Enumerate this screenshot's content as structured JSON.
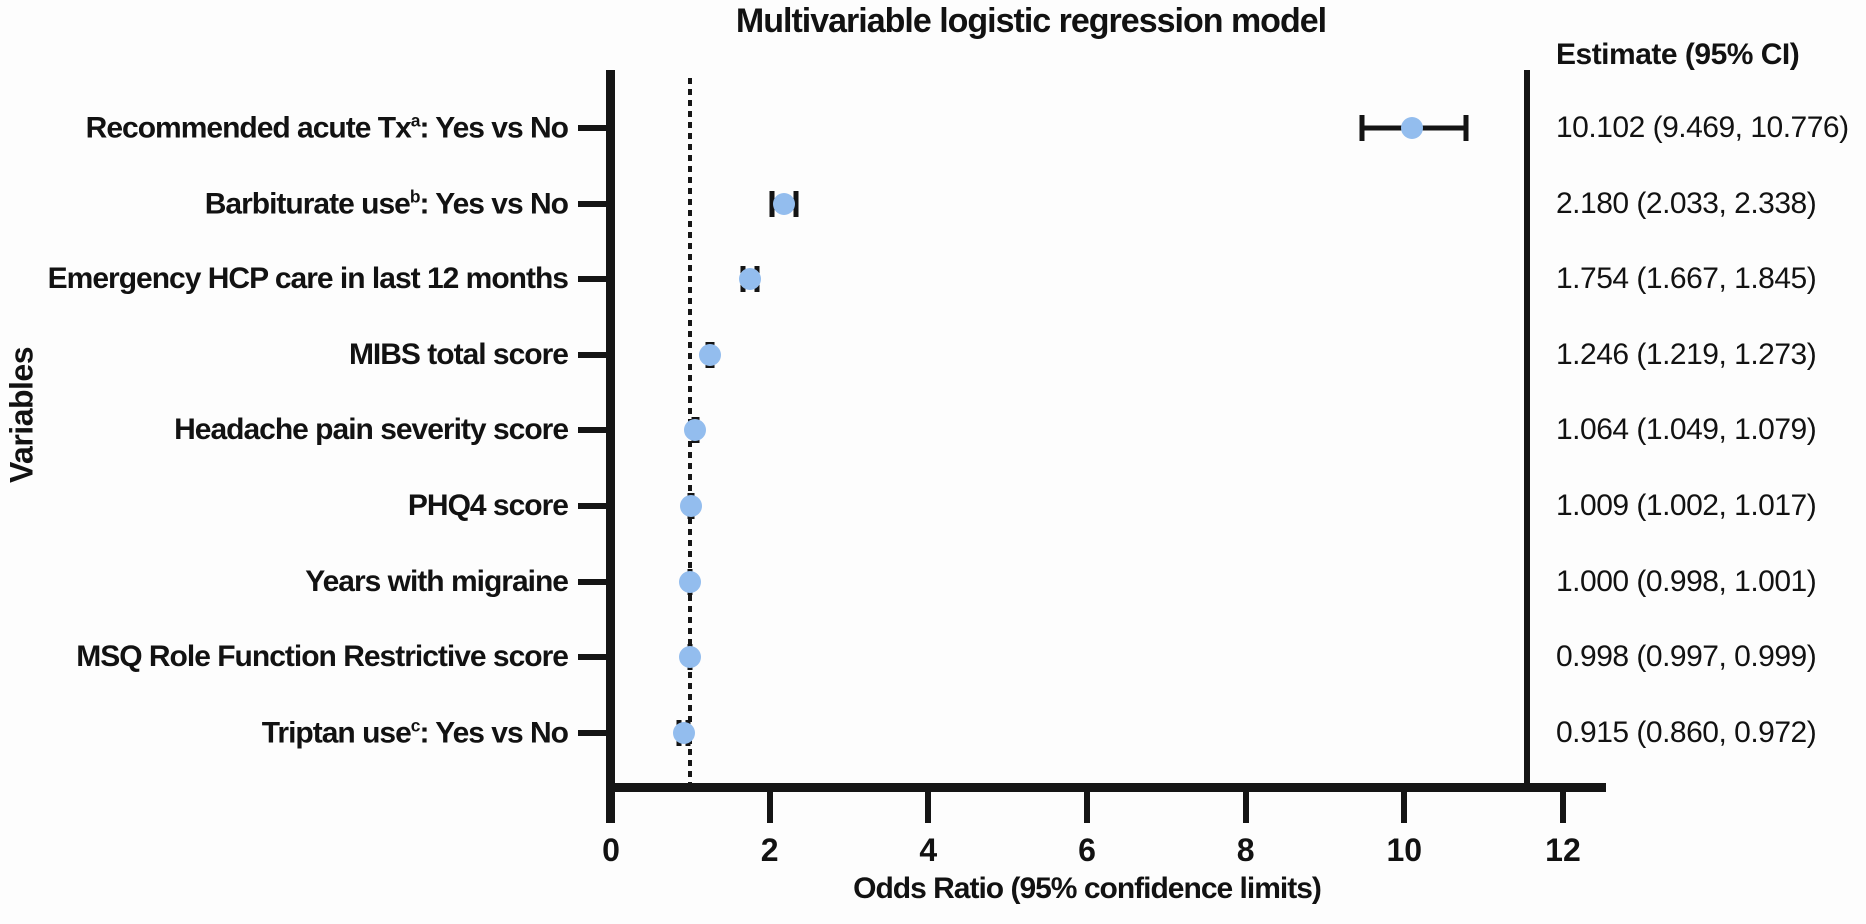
{
  "title": "Multivariable logistic regression model",
  "estimate_column_header": "Estimate (95% CI)",
  "chart_data": {
    "type": "scatter",
    "subtype": "forest-plot",
    "title": "Multivariable logistic regression model",
    "xlabel": "Odds Ratio (95% confidence limits)",
    "ylabel": "Variables",
    "xlim": [
      0,
      12
    ],
    "x_ticks": [
      "0",
      "2",
      "4",
      "6",
      "8",
      "10",
      "12"
    ],
    "x_tick_values": [
      0,
      2,
      4,
      6,
      8,
      10,
      12
    ],
    "reference_line_x": 1,
    "grid": false,
    "legend": "none",
    "marker_color": "#93bdee",
    "axis_color": "#151515",
    "rows": [
      {
        "label": "Recommended acute Tx",
        "sup": "a",
        "label_suffix": ": Yes vs No",
        "estimate": 10.102,
        "ci_lower": 9.469,
        "ci_upper": 10.776,
        "estimate_text": "10.102 (9.469, 10.776)"
      },
      {
        "label": "Barbiturate use",
        "sup": "b",
        "label_suffix": ": Yes vs No",
        "estimate": 2.18,
        "ci_lower": 2.033,
        "ci_upper": 2.338,
        "estimate_text": "2.180 (2.033, 2.338)"
      },
      {
        "label": "Emergency HCP care in last 12 months",
        "sup": "",
        "label_suffix": "",
        "estimate": 1.754,
        "ci_lower": 1.667,
        "ci_upper": 1.845,
        "estimate_text": "1.754 (1.667, 1.845)"
      },
      {
        "label": "MIBS total score",
        "sup": "",
        "label_suffix": "",
        "estimate": 1.246,
        "ci_lower": 1.219,
        "ci_upper": 1.273,
        "estimate_text": "1.246 (1.219, 1.273)"
      },
      {
        "label": "Headache pain severity score",
        "sup": "",
        "label_suffix": "",
        "estimate": 1.064,
        "ci_lower": 1.049,
        "ci_upper": 1.079,
        "estimate_text": "1.064 (1.049, 1.079)"
      },
      {
        "label": "PHQ4 score",
        "sup": "",
        "label_suffix": "",
        "estimate": 1.009,
        "ci_lower": 1.002,
        "ci_upper": 1.017,
        "estimate_text": "1.009 (1.002, 1.017)"
      },
      {
        "label": "Years with migraine",
        "sup": "",
        "label_suffix": "",
        "estimate": 1.0,
        "ci_lower": 0.998,
        "ci_upper": 1.001,
        "estimate_text": "1.000 (0.998, 1.001)"
      },
      {
        "label": "MSQ Role Function Restrictive score",
        "sup": "",
        "label_suffix": "",
        "estimate": 0.998,
        "ci_lower": 0.997,
        "ci_upper": 0.999,
        "estimate_text": "0.998 (0.997, 0.999)"
      },
      {
        "label": "Triptan use",
        "sup": "c",
        "label_suffix": ": Yes vs No",
        "estimate": 0.915,
        "ci_lower": 0.86,
        "ci_upper": 0.972,
        "estimate_text": "0.915 (0.860, 0.972)"
      }
    ]
  }
}
